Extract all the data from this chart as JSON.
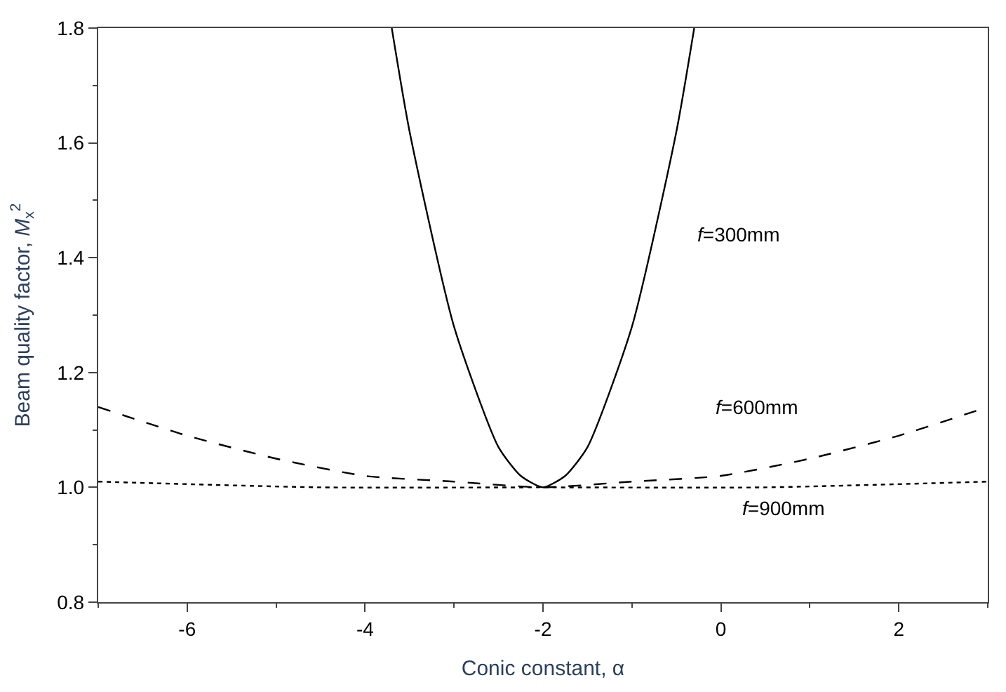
{
  "chart_data": {
    "type": "line",
    "xlabel": "Conic constant, α",
    "ylabel": "Beam quality factor, M$_{x}$$^{2}$",
    "xlim": [
      -7,
      3
    ],
    "ylim": [
      0.8,
      1.8
    ],
    "xticks": [
      -6,
      -4,
      -2,
      0,
      2
    ],
    "yticks": [
      0.8,
      {
        "value": 1,
        "label": "1.0"
      },
      1.2,
      1.4,
      1.6,
      1.8
    ],
    "series": [
      {
        "name": "f=300mm",
        "color": "#000000",
        "line_style": "solid",
        "x": [
          -3.7,
          -3.5,
          -3.0,
          -2.5,
          -2.25,
          -2.0,
          -1.75,
          -1.5,
          -1.0,
          -0.5,
          -0.3
        ],
        "values": [
          1.8,
          1.62,
          1.28,
          1.07,
          1.02,
          1.0,
          1.02,
          1.07,
          1.28,
          1.62,
          1.8
        ]
      },
      {
        "name": "f=600mm",
        "color": "#000000",
        "line_style": "dashed",
        "x": [
          -7,
          -6,
          -5,
          -4,
          -3,
          -2,
          -1,
          0,
          1,
          2,
          3
        ],
        "values": [
          1.14,
          1.09,
          1.05,
          1.02,
          1.01,
          1.0,
          1.01,
          1.02,
          1.05,
          1.09,
          1.14
        ]
      },
      {
        "name": "f=900mm",
        "color": "#000000",
        "line_style": "dotted",
        "x": [
          -7,
          -4.5,
          -2,
          0.5,
          3
        ],
        "values": [
          1.01,
          1.0,
          1.0,
          1.0,
          1.01
        ]
      }
    ]
  }
}
